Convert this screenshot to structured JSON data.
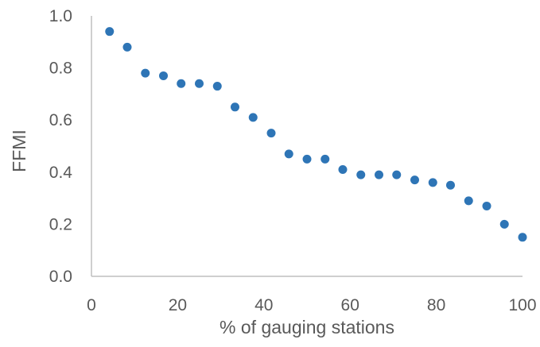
{
  "chart_data": {
    "type": "scatter",
    "title": "",
    "xlabel": "% of gauging stations",
    "ylabel": "FFMI",
    "xlim": [
      0,
      100
    ],
    "ylim": [
      0,
      1.0
    ],
    "x_ticks": [
      "0",
      "20",
      "40",
      "60",
      "80",
      "100"
    ],
    "y_ticks": [
      "0.0",
      "0.2",
      "0.4",
      "0.6",
      "0.8",
      "1.0"
    ],
    "grid": false,
    "legend": "none",
    "marker_color": "#2E75B6",
    "axis_color": "#BFBFBF",
    "series": [
      {
        "x": [
          4.2,
          8.3,
          12.5,
          16.7,
          20.8,
          25.0,
          29.2,
          33.3,
          37.5,
          41.7,
          45.8,
          50.0,
          54.2,
          58.3,
          62.5,
          66.7,
          70.8,
          75.0,
          79.2,
          83.3,
          87.5,
          91.7,
          95.8,
          100.0
        ],
        "y": [
          0.94,
          0.88,
          0.78,
          0.77,
          0.74,
          0.74,
          0.73,
          0.65,
          0.61,
          0.55,
          0.47,
          0.45,
          0.45,
          0.41,
          0.39,
          0.39,
          0.39,
          0.37,
          0.36,
          0.35,
          0.29,
          0.27,
          0.2,
          0.15
        ]
      }
    ]
  }
}
